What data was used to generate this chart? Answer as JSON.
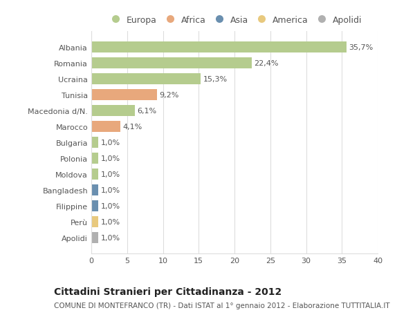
{
  "countries": [
    "Albania",
    "Romania",
    "Ucraina",
    "Tunisia",
    "Macedonia d/N.",
    "Marocco",
    "Bulgaria",
    "Polonia",
    "Moldova",
    "Bangladesh",
    "Filippine",
    "Perù",
    "Apolidi"
  ],
  "values": [
    35.7,
    22.4,
    15.3,
    9.2,
    6.1,
    4.1,
    1.0,
    1.0,
    1.0,
    1.0,
    1.0,
    1.0,
    1.0
  ],
  "labels": [
    "35,7%",
    "22,4%",
    "15,3%",
    "9,2%",
    "6,1%",
    "4,1%",
    "1,0%",
    "1,0%",
    "1,0%",
    "1,0%",
    "1,0%",
    "1,0%",
    "1,0%"
  ],
  "colors": [
    "#b5cc8e",
    "#b5cc8e",
    "#b5cc8e",
    "#e8a87c",
    "#b5cc8e",
    "#e8a87c",
    "#b5cc8e",
    "#b5cc8e",
    "#b5cc8e",
    "#6a8faf",
    "#6a8faf",
    "#e8c97e",
    "#b0b0b0"
  ],
  "legend_labels": [
    "Europa",
    "Africa",
    "Asia",
    "America",
    "Apolidi"
  ],
  "legend_colors": [
    "#b5cc8e",
    "#e8a87c",
    "#6a8faf",
    "#e8c97e",
    "#b0b0b0"
  ],
  "title": "Cittadini Stranieri per Cittadinanza - 2012",
  "subtitle": "COMUNE DI MONTEFRANCO (TR) - Dati ISTAT al 1° gennaio 2012 - Elaborazione TUTTITALIA.IT",
  "xlim": [
    0,
    40
  ],
  "xticks": [
    0,
    5,
    10,
    15,
    20,
    25,
    30,
    35,
    40
  ],
  "bg_color": "#ffffff",
  "grid_color": "#dddddd",
  "bar_height": 0.72,
  "label_fontsize": 8,
  "tick_fontsize": 8,
  "title_fontsize": 10,
  "subtitle_fontsize": 7.5
}
